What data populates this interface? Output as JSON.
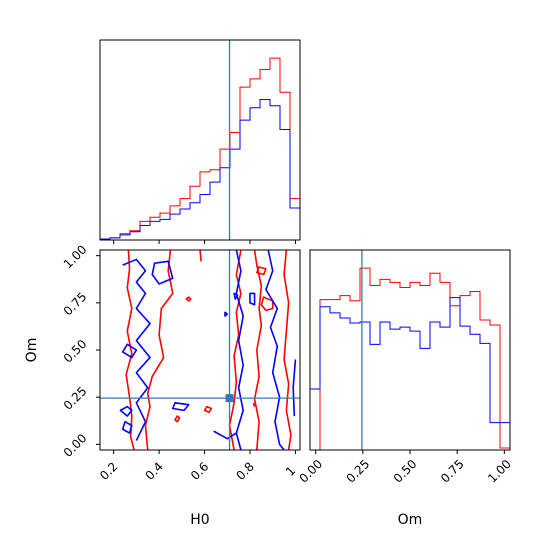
{
  "chart_data": {
    "type": "corner",
    "parameters": [
      "H0",
      "Om"
    ],
    "truth": {
      "H0": 0.71,
      "Om": 0.245
    },
    "colors": {
      "series_1": "#ff0000",
      "series_2": "#0000ff",
      "truth": "#3a78b4"
    },
    "panels": [
      {
        "id": "H0-marginal",
        "type": "histogram-step",
        "xlim": [
          0.14,
          1.02
        ],
        "x_ticks": [
          0.2,
          0.4,
          0.6,
          0.8,
          1.0
        ],
        "bin_edges": [
          0.14,
          0.184,
          0.228,
          0.272,
          0.316,
          0.36,
          0.404,
          0.448,
          0.492,
          0.536,
          0.58,
          0.624,
          0.668,
          0.712,
          0.756,
          0.8,
          0.844,
          0.888,
          0.932,
          0.976,
          1.02
        ],
        "series": [
          {
            "color_key": "series_1",
            "counts": [
              1,
              2,
              6,
              9,
              18,
              22,
              26,
              33,
              40,
              52,
              66,
              68,
              88,
              104,
              148,
              156,
              165,
              176,
              143,
              40
            ]
          },
          {
            "color_key": "series_2",
            "counts": [
              1,
              2,
              5,
              8,
              14,
              18,
              20,
              25,
              30,
              36,
              44,
              56,
              70,
              88,
              116,
              128,
              136,
              130,
              107,
              31
            ]
          }
        ]
      },
      {
        "id": "Om-marginal",
        "type": "histogram-step",
        "xlim": [
          -0.03,
          1.03
        ],
        "x_ticks": [
          0.0,
          0.25,
          0.5,
          0.75,
          1.0
        ],
        "tick_labels": [
          "0.00",
          "0.25",
          "0.50",
          "0.75",
          "1.00"
        ],
        "bin_edges": [
          -0.03,
          0.023,
          0.076,
          0.129,
          0.182,
          0.235,
          0.288,
          0.341,
          0.394,
          0.447,
          0.5,
          0.553,
          0.606,
          0.659,
          0.712,
          0.765,
          0.818,
          0.871,
          0.924,
          0.977,
          1.03
        ],
        "series": [
          {
            "color_key": "series_1",
            "counts": [
              0,
              148,
              148,
              152,
              147,
              179,
              162,
              168,
              165,
              160,
              165,
              162,
              174,
              165,
              142,
              152,
              156,
              128,
              123,
              2
            ]
          },
          {
            "color_key": "series_2",
            "counts": [
              60,
              141,
              135,
              130,
              125,
              126,
              104,
              126,
              119,
              121,
              117,
              100,
              126,
              121,
              150,
              122,
              114,
              105,
              27,
              27
            ]
          }
        ]
      },
      {
        "id": "H0-Om-joint",
        "type": "contour",
        "xlim": [
          0.14,
          1.02
        ],
        "ylim": [
          -0.03,
          1.03
        ],
        "x_ticks": [
          0.2,
          0.4,
          0.6,
          0.8,
          1.0
        ],
        "y_ticks": [
          0.0,
          0.25,
          0.5,
          0.75,
          1.0
        ],
        "y_tick_labels": [
          "0.00",
          "0.25",
          "0.50",
          "0.75",
          "1.00"
        ],
        "contours": [
          {
            "color_key": "series_1",
            "closed": false,
            "points": [
              [
                0.265,
                1.03
              ],
              [
                0.27,
                0.93
              ],
              [
                0.26,
                0.83
              ],
              [
                0.28,
                0.72
              ],
              [
                0.26,
                0.6
              ],
              [
                0.28,
                0.48
              ],
              [
                0.255,
                0.37
              ],
              [
                0.27,
                0.25
              ],
              [
                0.28,
                0.15
              ],
              [
                0.275,
                0.04
              ],
              [
                0.29,
                -0.03
              ]
            ]
          },
          {
            "color_key": "series_1",
            "closed": false,
            "points": [
              [
                0.45,
                1.03
              ],
              [
                0.44,
                0.92
              ],
              [
                0.46,
                0.8
              ],
              [
                0.41,
                0.72
              ],
              [
                0.4,
                0.58
              ],
              [
                0.42,
                0.46
              ],
              [
                0.37,
                0.36
              ],
              [
                0.35,
                0.27
              ],
              [
                0.36,
                0.2
              ],
              [
                0.34,
                0.1
              ],
              [
                0.35,
                -0.03
              ]
            ]
          },
          {
            "color_key": "series_1",
            "closed": false,
            "points": [
              [
                0.73,
                -0.03
              ],
              [
                0.71,
                0.1
              ],
              [
                0.73,
                0.22
              ],
              [
                0.74,
                0.33
              ],
              [
                0.73,
                0.47
              ],
              [
                0.75,
                0.58
              ],
              [
                0.74,
                0.7
              ],
              [
                0.76,
                0.8
              ],
              [
                0.74,
                0.9
              ],
              [
                0.76,
                1.03
              ]
            ]
          },
          {
            "color_key": "series_1",
            "closed": false,
            "points": [
              [
                0.83,
                -0.03
              ],
              [
                0.84,
                0.12
              ],
              [
                0.82,
                0.24
              ],
              [
                0.84,
                0.36
              ],
              [
                0.83,
                0.5
              ],
              [
                0.85,
                0.63
              ],
              [
                0.84,
                0.72
              ],
              [
                0.85,
                0.84
              ],
              [
                0.83,
                0.95
              ],
              [
                0.82,
                1.03
              ]
            ]
          },
          {
            "color_key": "series_1",
            "closed": false,
            "points": [
              [
                0.96,
                1.03
              ],
              [
                0.95,
                0.9
              ],
              [
                0.97,
                0.75
              ],
              [
                0.96,
                0.6
              ],
              [
                0.95,
                0.45
              ],
              [
                0.97,
                0.32
              ],
              [
                0.96,
                0.18
              ],
              [
                0.98,
                0.05
              ],
              [
                0.97,
                -0.03
              ]
            ]
          },
          {
            "color_key": "series_1",
            "closed": true,
            "points": [
              [
                0.86,
                0.78
              ],
              [
                0.9,
                0.76
              ],
              [
                0.9,
                0.72
              ],
              [
                0.87,
                0.71
              ],
              [
                0.85,
                0.74
              ]
            ]
          },
          {
            "color_key": "series_1",
            "closed": true,
            "points": [
              [
                0.84,
                0.94
              ],
              [
                0.87,
                0.93
              ],
              [
                0.86,
                0.9
              ],
              [
                0.83,
                0.91
              ]
            ]
          },
          {
            "color_key": "series_1",
            "closed": true,
            "points": [
              [
                0.48,
                0.15
              ],
              [
                0.49,
                0.14
              ],
              [
                0.48,
                0.12
              ],
              [
                0.47,
                0.13
              ]
            ]
          },
          {
            "color_key": "series_1",
            "closed": true,
            "points": [
              [
                0.53,
                0.78
              ],
              [
                0.54,
                0.77
              ],
              [
                0.53,
                0.76
              ],
              [
                0.52,
                0.77
              ]
            ]
          },
          {
            "color_key": "series_1",
            "closed": true,
            "points": [
              [
                0.61,
                0.2
              ],
              [
                0.63,
                0.19
              ],
              [
                0.62,
                0.17
              ],
              [
                0.6,
                0.18
              ]
            ]
          },
          {
            "color_key": "series_1",
            "closed": false,
            "points": [
              [
                0.58,
                1.03
              ],
              [
                0.585,
                0.97
              ]
            ]
          },
          {
            "color_key": "series_1",
            "closed": false,
            "points": [
              [
                0.815,
                0.22
              ],
              [
                0.82,
                0.2
              ]
            ]
          },
          {
            "color_key": "series_2",
            "closed": false,
            "points": [
              [
                0.24,
                0.95
              ],
              [
                0.3,
                0.98
              ],
              [
                0.34,
                0.92
              ],
              [
                0.3,
                0.86
              ],
              [
                0.34,
                0.8
              ],
              [
                0.3,
                0.72
              ],
              [
                0.36,
                0.64
              ],
              [
                0.3,
                0.55
              ],
              [
                0.36,
                0.46
              ],
              [
                0.3,
                0.38
              ],
              [
                0.35,
                0.3
              ],
              [
                0.3,
                0.22
              ],
              [
                0.34,
                0.12
              ],
              [
                0.3,
                0.02
              ]
            ]
          },
          {
            "color_key": "series_2",
            "closed": true,
            "points": [
              [
                0.38,
                0.96
              ],
              [
                0.44,
                0.97
              ],
              [
                0.46,
                0.88
              ],
              [
                0.4,
                0.85
              ],
              [
                0.37,
                0.9
              ]
            ]
          },
          {
            "color_key": "series_2",
            "closed": true,
            "points": [
              [
                0.26,
                0.53
              ],
              [
                0.3,
                0.5
              ],
              [
                0.28,
                0.46
              ],
              [
                0.24,
                0.49
              ]
            ]
          },
          {
            "color_key": "series_2",
            "closed": true,
            "points": [
              [
                0.26,
                0.2
              ],
              [
                0.28,
                0.18
              ],
              [
                0.26,
                0.15
              ],
              [
                0.23,
                0.18
              ]
            ]
          },
          {
            "color_key": "series_2",
            "closed": true,
            "points": [
              [
                0.25,
                0.12
              ],
              [
                0.28,
                0.1
              ],
              [
                0.27,
                0.06
              ],
              [
                0.24,
                0.08
              ]
            ]
          },
          {
            "color_key": "series_2",
            "closed": true,
            "points": [
              [
                0.47,
                0.22
              ],
              [
                0.53,
                0.21
              ],
              [
                0.51,
                0.18
              ],
              [
                0.46,
                0.19
              ]
            ]
          },
          {
            "color_key": "series_2",
            "closed": false,
            "points": [
              [
                0.74,
                1.03
              ],
              [
                0.76,
                0.92
              ],
              [
                0.74,
                0.8
              ],
              [
                0.77,
                0.68
              ],
              [
                0.75,
                0.55
              ],
              [
                0.77,
                0.42
              ],
              [
                0.75,
                0.3
              ],
              [
                0.77,
                0.18
              ],
              [
                0.74,
                0.06
              ],
              [
                0.76,
                -0.03
              ]
            ]
          },
          {
            "color_key": "series_2",
            "closed": false,
            "points": [
              [
                0.64,
                0.07
              ],
              [
                0.7,
                0.03
              ],
              [
                0.74,
                0.06
              ]
            ]
          },
          {
            "color_key": "series_2",
            "closed": false,
            "points": [
              [
                0.88,
                1.03
              ],
              [
                0.9,
                0.92
              ],
              [
                0.87,
                0.82
              ],
              [
                0.92,
                0.72
              ],
              [
                0.89,
                0.62
              ],
              [
                0.92,
                0.52
              ],
              [
                0.9,
                0.38
              ],
              [
                0.93,
                0.25
              ],
              [
                0.91,
                0.12
              ],
              [
                0.93,
                0.0
              ],
              [
                0.95,
                -0.03
              ]
            ]
          },
          {
            "color_key": "series_2",
            "closed": true,
            "points": [
              [
                0.8,
                0.8
              ],
              [
                0.82,
                0.8
              ],
              [
                0.82,
                0.74
              ],
              [
                0.8,
                0.75
              ]
            ]
          },
          {
            "color_key": "series_2",
            "closed": true,
            "points": [
              [
                0.73,
                0.8
              ],
              [
                0.745,
                0.79
              ],
              [
                0.735,
                0.77
              ]
            ]
          },
          {
            "color_key": "series_2",
            "closed": true,
            "points": [
              [
                0.69,
                0.7
              ],
              [
                0.7,
                0.69
              ],
              [
                0.69,
                0.68
              ]
            ]
          },
          {
            "color_key": "series_2",
            "closed": false,
            "points": [
              [
                1.0,
                0.45
              ],
              [
                0.99,
                0.3
              ],
              [
                0.995,
                0.15
              ]
            ]
          }
        ]
      }
    ],
    "axis_labels": {
      "H0": "H0",
      "Om": "Om"
    }
  }
}
